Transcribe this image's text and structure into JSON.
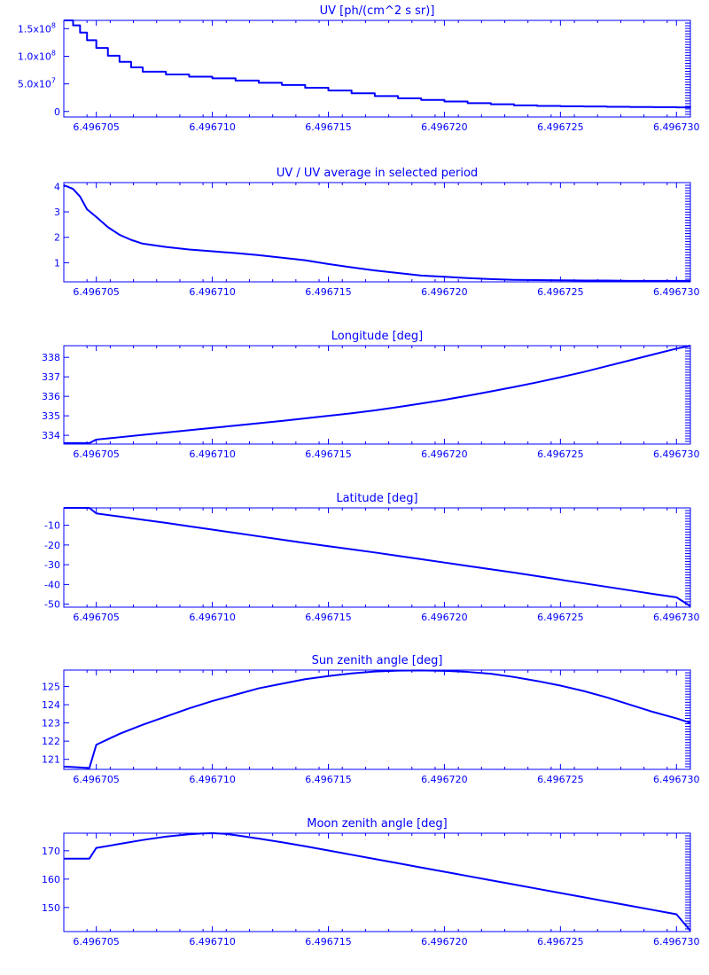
{
  "chart_data": [
    {
      "type": "line",
      "title": "UV [ph/(cm^2 s sr)]",
      "xlim": [
        6.4967036,
        6.4967306
      ],
      "xticks": [
        "6.496705",
        "6.496710",
        "6.496715",
        "6.496720",
        "6.496725",
        "6.496730"
      ],
      "ylim": [
        -10000000,
        165000000
      ],
      "yticks": [
        {
          "value": 0,
          "label": "0"
        },
        {
          "value": 50000000,
          "label": "5.0x10",
          "exp": "7"
        },
        {
          "value": 100000000,
          "label": "1.0x10",
          "exp": "8"
        },
        {
          "value": 150000000,
          "label": "1.5x10",
          "exp": "8"
        }
      ],
      "step": true,
      "x": [
        6.4967036,
        6.496704,
        6.4967043,
        6.4967046,
        6.496705,
        6.4967055,
        6.496706,
        6.4967065,
        6.496707,
        6.496708,
        6.496709,
        6.49671,
        6.496711,
        6.496712,
        6.496713,
        6.496714,
        6.496715,
        6.496716,
        6.496717,
        6.496718,
        6.496719,
        6.49672,
        6.496721,
        6.496722,
        6.496723,
        6.496724,
        6.496725,
        6.496726,
        6.496727,
        6.496728,
        6.496729,
        6.49673,
        6.4967306
      ],
      "y": [
        165000000,
        156000000,
        143000000,
        129000000,
        115000000,
        101000000,
        90000000,
        80000000,
        72000000,
        67000000,
        63000000,
        60000000,
        56000000,
        52000000,
        48000000,
        43000000,
        38000000,
        33000000,
        28000000,
        24000000,
        21000000,
        18000000,
        15000000,
        13000000,
        11000000,
        10000000,
        9500000,
        9000000,
        8500000,
        8000000,
        7800000,
        7500000,
        7000000
      ]
    },
    {
      "type": "line",
      "title": "UV / UV average in selected period",
      "xlim": [
        6.4967036,
        6.4967306
      ],
      "xticks": [
        "6.496705",
        "6.496710",
        "6.496715",
        "6.496720",
        "6.496725",
        "6.496730"
      ],
      "ylim": [
        0.25,
        4.15
      ],
      "yticks": [
        {
          "value": 1,
          "label": "1"
        },
        {
          "value": 2,
          "label": "2"
        },
        {
          "value": 3,
          "label": "3"
        },
        {
          "value": 4,
          "label": "4"
        }
      ],
      "step": false,
      "x": [
        6.4967036,
        6.496704,
        6.4967043,
        6.4967046,
        6.496705,
        6.4967055,
        6.496706,
        6.4967065,
        6.496707,
        6.496708,
        6.496709,
        6.49671,
        6.496711,
        6.496712,
        6.496713,
        6.496714,
        6.496715,
        6.496716,
        6.496717,
        6.496718,
        6.496719,
        6.49672,
        6.496721,
        6.496722,
        6.496723,
        6.496724,
        6.496725,
        6.496726,
        6.496727,
        6.496728,
        6.496729,
        6.49673,
        6.4967306
      ],
      "y": [
        4.05,
        3.9,
        3.6,
        3.1,
        2.8,
        2.4,
        2.1,
        1.9,
        1.75,
        1.62,
        1.52,
        1.45,
        1.38,
        1.3,
        1.2,
        1.1,
        0.95,
        0.82,
        0.7,
        0.6,
        0.5,
        0.45,
        0.4,
        0.36,
        0.33,
        0.32,
        0.31,
        0.3,
        0.3,
        0.29,
        0.29,
        0.29,
        0.29
      ]
    },
    {
      "type": "line",
      "title": "Longitude [deg]",
      "xlim": [
        6.4967036,
        6.4967306
      ],
      "xticks": [
        "6.496705",
        "6.496710",
        "6.496715",
        "6.496720",
        "6.496725",
        "6.496730"
      ],
      "ylim": [
        333.55,
        338.6
      ],
      "yticks": [
        {
          "value": 334,
          "label": "334"
        },
        {
          "value": 335,
          "label": "335"
        },
        {
          "value": 336,
          "label": "336"
        },
        {
          "value": 337,
          "label": "337"
        },
        {
          "value": 338,
          "label": "338"
        }
      ],
      "step": false,
      "x": [
        6.4967036,
        6.496704,
        6.4967043,
        6.4967047,
        6.496705,
        6.4967055,
        6.496706,
        6.496707,
        6.496708,
        6.496709,
        6.49671,
        6.496711,
        6.496712,
        6.496713,
        6.496714,
        6.496715,
        6.496716,
        6.496717,
        6.496718,
        6.496719,
        6.49672,
        6.496721,
        6.496722,
        6.496723,
        6.496724,
        6.496725,
        6.496726,
        6.496727,
        6.496728,
        6.496729,
        6.49673,
        6.4967306
      ],
      "y": [
        333.6,
        333.6,
        333.6,
        333.6,
        333.78,
        333.84,
        333.9,
        334.02,
        334.14,
        334.26,
        334.38,
        334.5,
        334.62,
        334.74,
        334.87,
        335.0,
        335.13,
        335.28,
        335.45,
        335.63,
        335.82,
        336.03,
        336.25,
        336.48,
        336.72,
        336.98,
        337.25,
        337.55,
        337.85,
        338.15,
        338.45,
        338.6
      ]
    },
    {
      "type": "line",
      "title": "Latitude [deg]",
      "xlim": [
        6.4967036,
        6.4967306
      ],
      "xticks": [
        "6.496705",
        "6.496710",
        "6.496715",
        "6.496720",
        "6.496725",
        "6.496730"
      ],
      "ylim": [
        -51.5,
        -1.2
      ],
      "yticks": [
        {
          "value": -10,
          "label": "-10"
        },
        {
          "value": -20,
          "label": "-20"
        },
        {
          "value": -30,
          "label": "-30"
        },
        {
          "value": -40,
          "label": "-40"
        },
        {
          "value": -50,
          "label": "-50"
        }
      ],
      "step": false,
      "x": [
        6.4967036,
        6.496704,
        6.4967044,
        6.4967047,
        6.496705,
        6.496706,
        6.496707,
        6.496708,
        6.496709,
        6.49671,
        6.496711,
        6.496712,
        6.496713,
        6.496714,
        6.496715,
        6.496716,
        6.496717,
        6.496718,
        6.496719,
        6.49672,
        6.496721,
        6.496722,
        6.496723,
        6.496724,
        6.496725,
        6.496726,
        6.496727,
        6.496728,
        6.496729,
        6.49673,
        6.4967306
      ],
      "y": [
        -1.2,
        -1.2,
        -1.2,
        -1.2,
        -4.0,
        -5.6,
        -7.2,
        -8.8,
        -10.5,
        -12.2,
        -13.9,
        -15.6,
        -17.3,
        -19.0,
        -20.6,
        -22.2,
        -23.8,
        -25.5,
        -27.2,
        -28.9,
        -30.6,
        -32.3,
        -34.0,
        -35.8,
        -37.6,
        -39.4,
        -41.2,
        -43.0,
        -44.8,
        -46.5,
        -51.0
      ]
    },
    {
      "type": "line",
      "title": "Sun zenith angle [deg]",
      "xlim": [
        6.4967036,
        6.4967306
      ],
      "xticks": [
        "6.496705",
        "6.496710",
        "6.496715",
        "6.496720",
        "6.496725",
        "6.496730"
      ],
      "ylim": [
        120.45,
        125.9
      ],
      "yticks": [
        {
          "value": 121,
          "label": "121"
        },
        {
          "value": 122,
          "label": "122"
        },
        {
          "value": 123,
          "label": "123"
        },
        {
          "value": 124,
          "label": "124"
        },
        {
          "value": 125,
          "label": "125"
        }
      ],
      "step": false,
      "x": [
        6.4967036,
        6.496704,
        6.4967044,
        6.4967047,
        6.496705,
        6.4967055,
        6.496706,
        6.496707,
        6.496708,
        6.496709,
        6.49671,
        6.496711,
        6.496712,
        6.496713,
        6.496714,
        6.496715,
        6.496716,
        6.496717,
        6.496718,
        6.496719,
        6.49672,
        6.496721,
        6.496722,
        6.496723,
        6.496724,
        6.496725,
        6.496726,
        6.496727,
        6.496728,
        6.496729,
        6.49673,
        6.4967306
      ],
      "y": [
        120.6,
        120.58,
        120.55,
        120.52,
        121.8,
        122.1,
        122.4,
        122.9,
        123.35,
        123.8,
        124.2,
        124.55,
        124.9,
        125.15,
        125.4,
        125.57,
        125.72,
        125.82,
        125.87,
        125.88,
        125.86,
        125.8,
        125.7,
        125.52,
        125.3,
        125.05,
        124.75,
        124.4,
        124.0,
        123.6,
        123.25,
        123.0
      ]
    },
    {
      "type": "line",
      "title": "Moon zenith angle [deg]",
      "xlim": [
        6.4967036,
        6.4967306
      ],
      "xticks": [
        "6.496705",
        "6.496710",
        "6.496715",
        "6.496720",
        "6.496725",
        "6.496730"
      ],
      "ylim": [
        141.5,
        176.2
      ],
      "yticks": [
        {
          "value": 150,
          "label": "150"
        },
        {
          "value": 160,
          "label": "160"
        },
        {
          "value": 170,
          "label": "170"
        }
      ],
      "step": false,
      "x": [
        6.4967036,
        6.496704,
        6.4967044,
        6.4967047,
        6.496705,
        6.496706,
        6.496707,
        6.496708,
        6.496709,
        6.4967095,
        6.49671,
        6.4967105,
        6.496711,
        6.496712,
        6.496713,
        6.496714,
        6.496715,
        6.496716,
        6.496717,
        6.496718,
        6.496719,
        6.49672,
        6.496721,
        6.496722,
        6.496723,
        6.496724,
        6.496725,
        6.496726,
        6.496727,
        6.496728,
        6.496729,
        6.49673,
        6.4967306
      ],
      "y": [
        167.2,
        167.2,
        167.2,
        167.2,
        171.0,
        172.4,
        173.8,
        175.0,
        175.8,
        176.1,
        176.2,
        176.0,
        175.5,
        174.3,
        173.0,
        171.6,
        170.1,
        168.6,
        167.1,
        165.6,
        164.1,
        162.6,
        161.1,
        159.6,
        158.1,
        156.6,
        155.1,
        153.6,
        152.1,
        150.6,
        149.1,
        147.6,
        141.8
      ]
    }
  ]
}
